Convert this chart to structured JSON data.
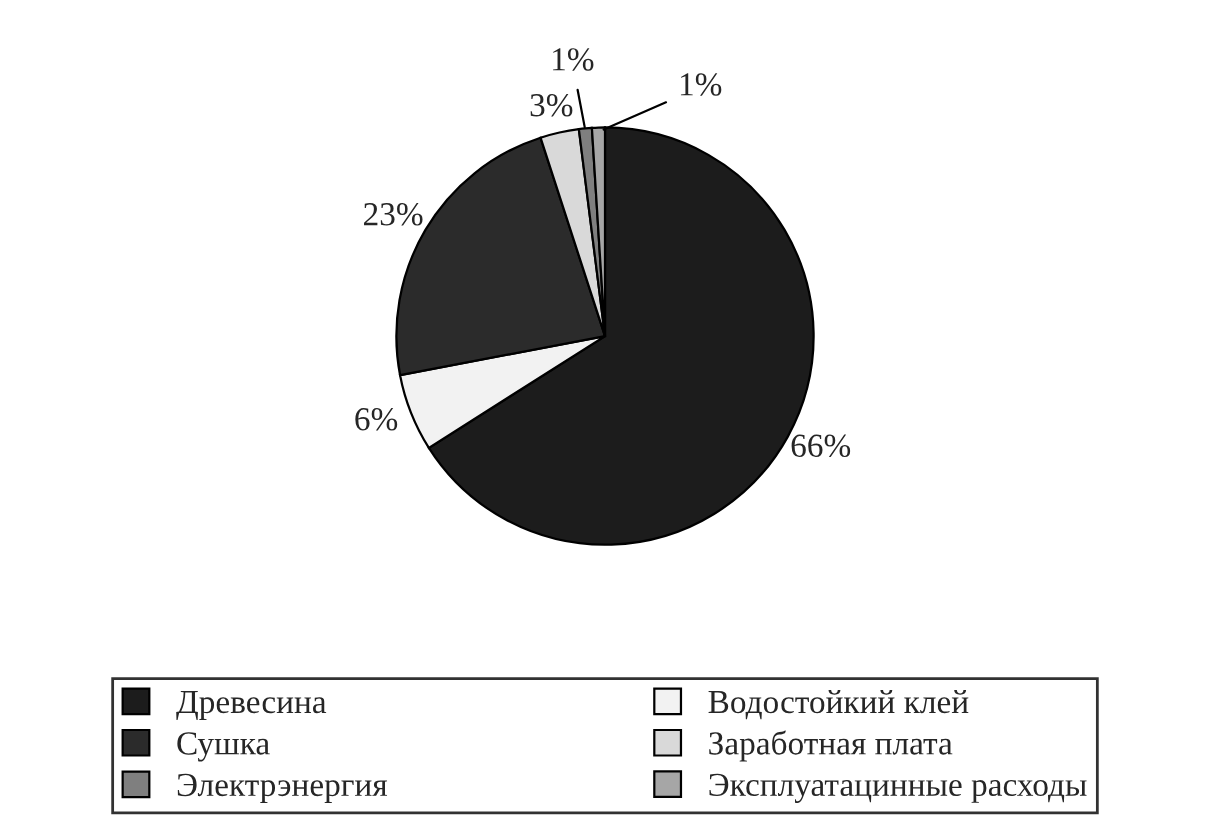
{
  "chart_data": {
    "type": "pie",
    "categories": [
      "Древесина",
      "Водостойкий клей",
      "Сушка",
      "Заработная плата",
      "Электрэнергия",
      "Эксплуатацинные расходы"
    ],
    "values": [
      66,
      6,
      23,
      3,
      1,
      1
    ],
    "colors": [
      "#1c1c1c",
      "#f2f2f2",
      "#2b2b2b",
      "#d9d9d9",
      "#7f7f7f",
      "#a6a6a6"
    ],
    "value_labels": [
      "66%",
      "6%",
      "23%",
      "3%",
      "1%",
      "1%"
    ],
    "legend": "bottom"
  }
}
